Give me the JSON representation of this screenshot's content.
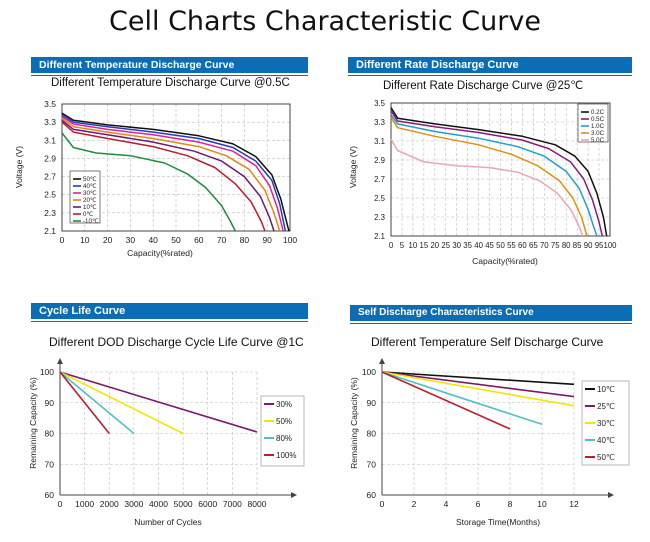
{
  "page_title": "Cell Charts Characteristic Curve",
  "panels": {
    "temp_discharge": {
      "header": "Different Temperature Discharge Curve"
    },
    "rate_discharge": {
      "header": "Different Rate Discharge Curve"
    },
    "cycle_life": {
      "header": "Cycle Life Curve"
    },
    "self_discharge": {
      "header": "Self Discharge Characteristics Curve"
    }
  },
  "chart_data": [
    {
      "id": "temp",
      "type": "line",
      "title": "Different Temperature Discharge Curve @0.5C",
      "xlabel": "Capacity(%rated)",
      "ylabel": "Voltage (V)",
      "xlim": [
        0,
        100
      ],
      "ylim": [
        2.1,
        3.5
      ],
      "xticks": [
        0,
        10,
        20,
        30,
        40,
        50,
        60,
        70,
        80,
        90,
        100
      ],
      "yticks": [
        3.5,
        3.3,
        3.1,
        2.9,
        2.7,
        2.5,
        2.3,
        2.1
      ],
      "grid": "dashed",
      "legend": "left",
      "series": [
        {
          "name": "50℃",
          "color": "#111111",
          "points": [
            [
              0,
              3.4
            ],
            [
              5,
              3.32
            ],
            [
              20,
              3.27
            ],
            [
              40,
              3.22
            ],
            [
              60,
              3.15
            ],
            [
              75,
              3.06
            ],
            [
              85,
              2.92
            ],
            [
              92,
              2.72
            ],
            [
              96,
              2.45
            ],
            [
              98.5,
              2.2
            ],
            [
              99.5,
              2.1
            ]
          ]
        },
        {
          "name": "40℃",
          "color": "#1f3fbf",
          "points": [
            [
              0,
              3.38
            ],
            [
              5,
              3.3
            ],
            [
              20,
              3.25
            ],
            [
              40,
              3.19
            ],
            [
              60,
              3.12
            ],
            [
              75,
              3.02
            ],
            [
              85,
              2.87
            ],
            [
              92,
              2.66
            ],
            [
              95.5,
              2.4
            ],
            [
              98,
              2.1
            ]
          ]
        },
        {
          "name": "30℃",
          "color": "#e0209a",
          "points": [
            [
              0,
              3.36
            ],
            [
              5,
              3.28
            ],
            [
              20,
              3.22
            ],
            [
              40,
              3.16
            ],
            [
              60,
              3.08
            ],
            [
              75,
              2.98
            ],
            [
              85,
              2.82
            ],
            [
              91,
              2.6
            ],
            [
              94.5,
              2.35
            ],
            [
              97,
              2.1
            ]
          ]
        },
        {
          "name": "20℃",
          "color": "#e08a12",
          "points": [
            [
              0,
              3.34
            ],
            [
              5,
              3.25
            ],
            [
              20,
              3.19
            ],
            [
              40,
              3.12
            ],
            [
              60,
              3.03
            ],
            [
              72,
              2.93
            ],
            [
              82,
              2.78
            ],
            [
              89,
              2.55
            ],
            [
              93,
              2.3
            ],
            [
              95.5,
              2.1
            ]
          ]
        },
        {
          "name": "10℃",
          "color": "#6a1a7a",
          "points": [
            [
              0,
              3.32
            ],
            [
              5,
              3.22
            ],
            [
              20,
              3.16
            ],
            [
              40,
              3.08
            ],
            [
              58,
              2.98
            ],
            [
              70,
              2.87
            ],
            [
              80,
              2.7
            ],
            [
              87,
              2.48
            ],
            [
              91,
              2.25
            ],
            [
              93,
              2.1
            ]
          ]
        },
        {
          "name": "0℃",
          "color": "#b81e2e",
          "points": [
            [
              0,
              3.3
            ],
            [
              5,
              3.19
            ],
            [
              20,
              3.12
            ],
            [
              40,
              3.03
            ],
            [
              55,
              2.93
            ],
            [
              67,
              2.8
            ],
            [
              76,
              2.62
            ],
            [
              83,
              2.42
            ],
            [
              87.5,
              2.2
            ],
            [
              89,
              2.1
            ]
          ]
        },
        {
          "name": "-10℃",
          "color": "#1e8c3c",
          "points": [
            [
              0,
              3.18
            ],
            [
              5,
              3.02
            ],
            [
              15,
              2.96
            ],
            [
              30,
              2.93
            ],
            [
              45,
              2.85
            ],
            [
              55,
              2.73
            ],
            [
              63,
              2.58
            ],
            [
              70,
              2.38
            ],
            [
              74,
              2.2
            ],
            [
              76,
              2.1
            ]
          ]
        }
      ]
    },
    {
      "id": "rate",
      "type": "line",
      "title": "Different Rate Discharge Curve @25℃",
      "xlabel": "Capacity(%rated)",
      "ylabel": "Voltage (V)",
      "xlim": [
        0,
        100
      ],
      "ylim": [
        2.1,
        3.5
      ],
      "xticks": [
        0,
        5,
        10,
        15,
        20,
        25,
        30,
        35,
        40,
        45,
        50,
        55,
        60,
        65,
        70,
        75,
        80,
        85,
        90,
        95,
        100
      ],
      "yticks": [
        3.5,
        3.3,
        3.1,
        2.9,
        2.7,
        2.5,
        2.3,
        2.1
      ],
      "grid": "dashed",
      "legend": "top-right",
      "series": [
        {
          "name": "0.2C",
          "color": "#111111",
          "points": [
            [
              0,
              3.45
            ],
            [
              3,
              3.34
            ],
            [
              20,
              3.28
            ],
            [
              40,
              3.22
            ],
            [
              60,
              3.15
            ],
            [
              75,
              3.06
            ],
            [
              84,
              2.94
            ],
            [
              90,
              2.78
            ],
            [
              94,
              2.55
            ],
            [
              97,
              2.3
            ],
            [
              98.5,
              2.1
            ]
          ]
        },
        {
          "name": "0.5C",
          "color": "#8a1a7a",
          "points": [
            [
              0,
              3.42
            ],
            [
              3,
              3.31
            ],
            [
              20,
              3.25
            ],
            [
              40,
              3.19
            ],
            [
              60,
              3.11
            ],
            [
              72,
              3.02
            ],
            [
              82,
              2.88
            ],
            [
              88,
              2.7
            ],
            [
              92,
              2.48
            ],
            [
              95,
              2.25
            ],
            [
              96.5,
              2.1
            ]
          ]
        },
        {
          "name": "1.0C",
          "color": "#1e9fd0",
          "points": [
            [
              0,
              3.38
            ],
            [
              3,
              3.28
            ],
            [
              20,
              3.2
            ],
            [
              40,
              3.13
            ],
            [
              58,
              3.04
            ],
            [
              70,
              2.94
            ],
            [
              80,
              2.78
            ],
            [
              86,
              2.6
            ],
            [
              90,
              2.38
            ],
            [
              92.5,
              2.2
            ],
            [
              94,
              2.1
            ]
          ]
        },
        {
          "name": "3.0C",
          "color": "#e0900f",
          "points": [
            [
              0,
              3.35
            ],
            [
              3,
              3.24
            ],
            [
              20,
              3.15
            ],
            [
              40,
              3.06
            ],
            [
              55,
              2.96
            ],
            [
              67,
              2.84
            ],
            [
              77,
              2.68
            ],
            [
              83,
              2.5
            ],
            [
              87,
              2.3
            ],
            [
              89.5,
              2.1
            ]
          ]
        },
        {
          "name": "5.0C",
          "color": "#e9a6b4",
          "points": [
            [
              0,
              3.12
            ],
            [
              3,
              3.0
            ],
            [
              15,
              2.88
            ],
            [
              30,
              2.84
            ],
            [
              45,
              2.82
            ],
            [
              58,
              2.77
            ],
            [
              68,
              2.68
            ],
            [
              76,
              2.55
            ],
            [
              82,
              2.38
            ],
            [
              86,
              2.2
            ],
            [
              87.5,
              2.1
            ]
          ]
        }
      ]
    },
    {
      "id": "cycle",
      "type": "line",
      "title": "Different DOD Discharge Cycle Life Curve @1C",
      "xlabel": "Number of Cycles",
      "ylabel": "Remaining Capacity (%)",
      "xlim": [
        0,
        8000
      ],
      "ylim": [
        60,
        100
      ],
      "xticks": [
        0,
        1000,
        2000,
        3000,
        4000,
        5000,
        6000,
        7000,
        8000
      ],
      "yticks": [
        100,
        90,
        80,
        70,
        60
      ],
      "grid": "dashed",
      "legend": "right",
      "series": [
        {
          "name": "30%",
          "color": "#7a1a6a",
          "points": [
            [
              0,
              100
            ],
            [
              8000,
              80.5
            ]
          ]
        },
        {
          "name": "50%",
          "color": "#f2e600",
          "points": [
            [
              0,
              100
            ],
            [
              5000,
              80
            ]
          ]
        },
        {
          "name": "80%",
          "color": "#4fc0c8",
          "points": [
            [
              0,
              100
            ],
            [
              3000,
              80
            ]
          ]
        },
        {
          "name": "100%",
          "color": "#b81e2e",
          "points": [
            [
              0,
              100
            ],
            [
              2000,
              80
            ]
          ]
        }
      ]
    },
    {
      "id": "self",
      "type": "line",
      "title": "Different Temperature Self Discharge Curve",
      "xlabel": "Storage Time(Months)",
      "ylabel": "Remaining Capacity (%)",
      "xlim": [
        0,
        12
      ],
      "ylim": [
        60,
        100
      ],
      "xticks": [
        0,
        2,
        4,
        6,
        8,
        10,
        12
      ],
      "yticks": [
        100,
        90,
        80,
        70,
        60
      ],
      "grid": "dashed",
      "legend": "right",
      "series": [
        {
          "name": "10℃",
          "color": "#111111",
          "points": [
            [
              0,
              100
            ],
            [
              12,
              96
            ]
          ]
        },
        {
          "name": "25℃",
          "color": "#7a1a6a",
          "points": [
            [
              0,
              100
            ],
            [
              12,
              92
            ]
          ]
        },
        {
          "name": "30℃",
          "color": "#f2e600",
          "points": [
            [
              0,
              100
            ],
            [
              12,
              89
            ]
          ]
        },
        {
          "name": "40℃",
          "color": "#4fc0c8",
          "points": [
            [
              0,
              100
            ],
            [
              10,
              83
            ]
          ]
        },
        {
          "name": "50℃",
          "color": "#b81e2e",
          "points": [
            [
              0,
              100
            ],
            [
              8,
              81.5
            ]
          ]
        }
      ]
    }
  ]
}
